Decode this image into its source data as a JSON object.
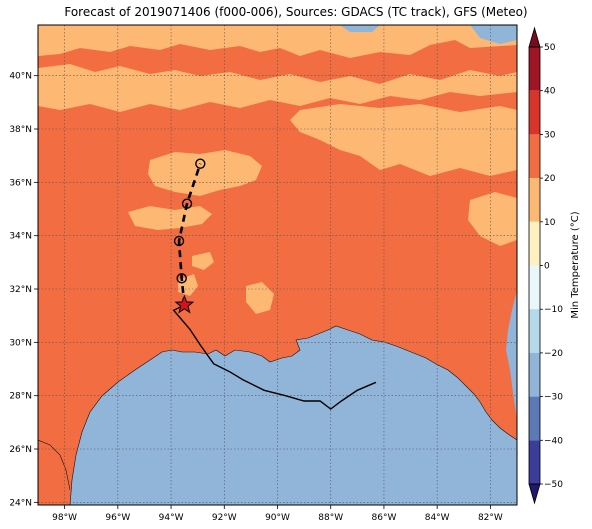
{
  "title": "Forecast of 2019071406 (f000-006), Sources: GDACS (TC track), GFS (Meteo)",
  "map": {
    "lon_range": [
      -99,
      -81
    ],
    "lat_range": [
      23.9,
      41.9
    ],
    "lon_ticks": [
      "98°W",
      "96°W",
      "94°W",
      "92°W",
      "90°W",
      "88°W",
      "86°W",
      "84°W",
      "82°W"
    ],
    "lon_values": [
      -98,
      -96,
      -94,
      -92,
      -90,
      -88,
      -86,
      -84,
      -82
    ],
    "lat_ticks": [
      "24°N",
      "26°N",
      "28°N",
      "30°N",
      "32°N",
      "34°N",
      "36°N",
      "38°N",
      "40°N"
    ],
    "lat_values": [
      24,
      26,
      28,
      30,
      32,
      34,
      36,
      38,
      40
    ],
    "grid": true,
    "ocean_color": "#91b4d9",
    "land_base_color": "#f26d42",
    "warm_patch_color": "#fdb974"
  },
  "colorbar": {
    "label": "Min Temperature (°C)",
    "ticks": [
      "50",
      "40",
      "30",
      "20",
      "10",
      "0",
      "−10",
      "−20",
      "−30",
      "−40",
      "−50"
    ],
    "levels": [
      {
        "from": 40,
        "to": 50,
        "color": "#a01424"
      },
      {
        "from": 30,
        "to": 40,
        "color": "#d9342a"
      },
      {
        "from": 20,
        "to": 30,
        "color": "#f26d42"
      },
      {
        "from": 10,
        "to": 20,
        "color": "#fdb974"
      },
      {
        "from": 0,
        "to": 10,
        "color": "#fef0c0"
      },
      {
        "from": -10,
        "to": 0,
        "color": "#e9f6fa"
      },
      {
        "from": -20,
        "to": -10,
        "color": "#b5d9ea"
      },
      {
        "from": -30,
        "to": -20,
        "color": "#91b4d9"
      },
      {
        "from": -40,
        "to": -30,
        "color": "#5b7ab5"
      },
      {
        "from": -50,
        "to": -40,
        "color": "#3a3d99"
      }
    ],
    "extend_top_color": "#7a0a1e",
    "extend_bottom_color": "#20186e"
  },
  "track": {
    "past_path": [
      [
        -86.3,
        28.5
      ],
      [
        -87.0,
        28.2
      ],
      [
        -87.6,
        27.8
      ],
      [
        -88.0,
        27.5
      ],
      [
        -88.4,
        27.8
      ],
      [
        -89.0,
        27.8
      ],
      [
        -89.7,
        28.0
      ],
      [
        -90.5,
        28.2
      ],
      [
        -91.3,
        28.6
      ],
      [
        -91.8,
        28.9
      ],
      [
        -92.4,
        29.2
      ],
      [
        -92.9,
        29.9
      ],
      [
        -93.3,
        30.5
      ],
      [
        -93.9,
        31.2
      ],
      [
        -93.5,
        31.4
      ]
    ],
    "current_position": [
      -93.5,
      31.4
    ],
    "forecast_points": [
      [
        -93.6,
        32.4
      ],
      [
        -93.7,
        33.8
      ],
      [
        -93.4,
        35.2
      ],
      [
        -92.9,
        36.7
      ]
    ]
  },
  "icons": {
    "current": "red-star-icon",
    "forecast": "open-circle-icon"
  }
}
